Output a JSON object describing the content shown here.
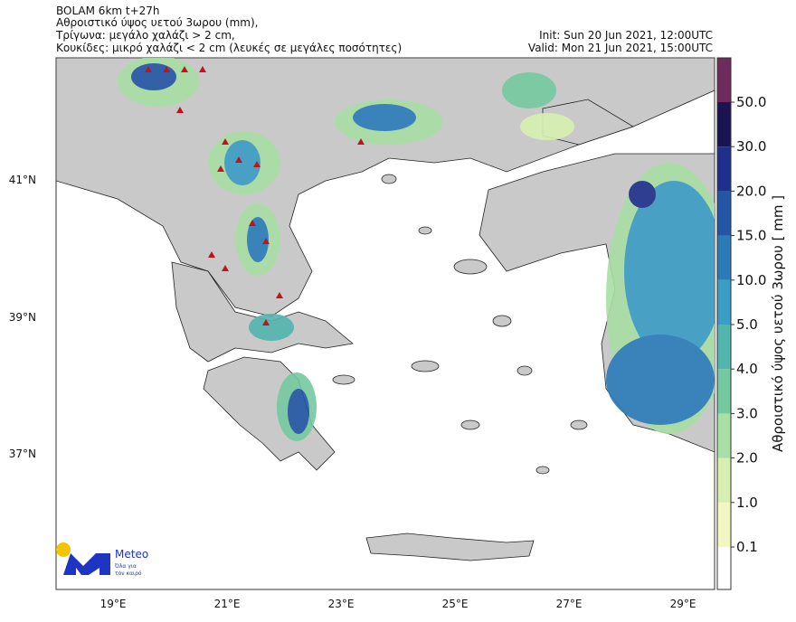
{
  "header": {
    "lines": [
      "BOLAM 6km t+27h",
      "Αθροιστικό ύψος υετού 3ωρου (mm),",
      "Τρίγωνα: μεγάλο χαλάζι > 2 cm,",
      "Κουκίδες: μικρό χαλάζι < 2 cm (λευκές σε μεγάλες ποσότητες)"
    ],
    "init": "Init: Sun 20 Jun 2021, 12:00UTC",
    "valid": "Valid: Mon 21 Jun 2021, 15:00UTC"
  },
  "axes": {
    "lon_labels": [
      "19°E",
      "21°E",
      "23°E",
      "25°E",
      "27°E",
      "29°E"
    ],
    "lat_labels": [
      "41°N",
      "39°N",
      "37°N"
    ]
  },
  "colorbar": {
    "title": "Αθροιστικό ύψος υετού 3ωρου [ mm ]",
    "levels": [
      {
        "value": 0.1,
        "label": "0.1"
      },
      {
        "value": 1,
        "label": "1.0"
      },
      {
        "value": 2,
        "label": "2.0"
      },
      {
        "value": 3,
        "label": "3.0"
      },
      {
        "value": 4,
        "label": "4.0"
      },
      {
        "value": 5,
        "label": "5.0"
      },
      {
        "value": 10,
        "label": "10.0"
      },
      {
        "value": 15,
        "label": "15.0"
      },
      {
        "value": 20,
        "label": "20.0"
      },
      {
        "value": 30,
        "label": "30.0"
      },
      {
        "value": 50,
        "label": "50.0"
      }
    ],
    "colors": [
      "#ffffff",
      "#f2f7c2",
      "#d6efb0",
      "#a8dfa4",
      "#74c9a0",
      "#52b5ae",
      "#3b9cc4",
      "#2b7bb9",
      "#2356a4",
      "#1f2f8c",
      "#1b1450",
      "#6e2b5e"
    ]
  },
  "logo": {
    "name": "Meteo",
    "tagline": [
      "Όλα για",
      "τον καιρό"
    ]
  }
}
